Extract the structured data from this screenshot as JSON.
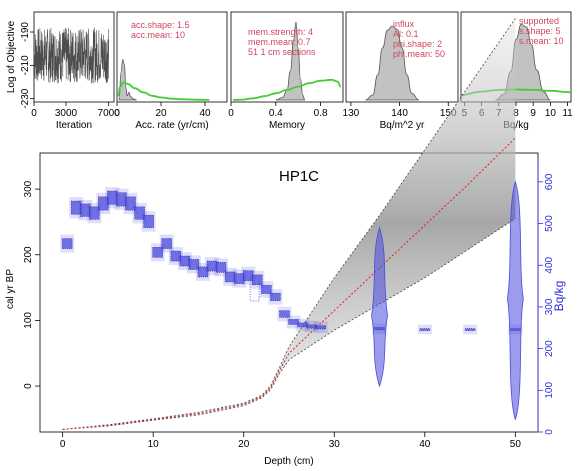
{
  "chart_data": [
    {
      "type": "line",
      "panel": "log-objective",
      "title": "",
      "xlabel": "Iteration",
      "ylabel": "Log of Objective",
      "xlim": [
        0,
        7500
      ],
      "ylim": [
        -232,
        -178
      ],
      "x_ticks": [
        0,
        3000,
        7000
      ],
      "y_ticks": [
        -230,
        -210,
        -190
      ],
      "series": [
        {
          "approx_range": [
            -228,
            -180
          ],
          "iterations": 7000
        }
      ],
      "grid": false
    },
    {
      "type": "area",
      "panel": "accumulation-rate",
      "xlabel": "Acc. rate (yr/cm)",
      "xlim": [
        0,
        50
      ],
      "x_ticks": [
        0,
        20,
        40
      ],
      "annotations": [
        "acc.shape:  1.5",
        "acc.mean:  10"
      ],
      "posterior_x": [
        1,
        1.8,
        2.6,
        3.4,
        4,
        4.6,
        5.4,
        6.2,
        7.6,
        9
      ],
      "posterior_y": [
        0.02,
        0.33,
        0.48,
        0.42,
        0.15,
        0.05,
        0.09,
        0.04,
        0.01,
        0
      ],
      "prior_x": [
        0.5,
        1.5,
        3,
        5,
        8,
        12,
        16,
        20,
        25,
        30,
        36,
        42
      ],
      "prior_y": [
        0.05,
        0.16,
        0.21,
        0.19,
        0.14,
        0.09,
        0.05,
        0.03,
        0.015,
        0.008,
        0.003,
        0.001
      ]
    },
    {
      "type": "area",
      "panel": "memory",
      "xlabel": "Memory",
      "xlim": [
        0,
        1
      ],
      "x_ticks": [
        0.0,
        0.4,
        0.8
      ],
      "annotations": [
        "mem.strength: 4",
        "mem.mean: 0.7",
        "51 1 cm sections"
      ],
      "posterior_x": [
        0.4,
        0.46,
        0.5,
        0.53,
        0.56,
        0.58,
        0.6,
        0.62,
        0.64,
        0.66
      ],
      "posterior_y": [
        0,
        0.03,
        0.12,
        0.35,
        0.72,
        0.93,
        0.62,
        0.25,
        0.06,
        0
      ],
      "prior_x": [
        0.02,
        0.1,
        0.2,
        0.3,
        0.4,
        0.5,
        0.6,
        0.7,
        0.8,
        0.9,
        0.95,
        0.98
      ],
      "prior_y": [
        0,
        0.005,
        0.02,
        0.045,
        0.08,
        0.12,
        0.16,
        0.2,
        0.23,
        0.24,
        0.22,
        0.16
      ]
    },
    {
      "type": "area",
      "panel": "influx",
      "xlabel": "Bq/m^2 yr",
      "xlim": [
        129,
        152
      ],
      "x_ticks": [
        130,
        140,
        150
      ],
      "annotations": [
        "influx",
        "Al:  0.1",
        "phi.shape:  2",
        "phi.mean:  50"
      ],
      "posterior_x": [
        133,
        134.5,
        135.5,
        136.5,
        137.5,
        138.5,
        139.5,
        140.5,
        141.5,
        142.5,
        144
      ],
      "posterior_y": [
        0,
        0.06,
        0.3,
        0.62,
        0.83,
        0.88,
        0.84,
        0.62,
        0.3,
        0.08,
        0
      ]
    },
    {
      "type": "area",
      "panel": "supported",
      "xlabel": "Bq/kg",
      "xlim": [
        4.8,
        11.2
      ],
      "x_ticks": [
        5,
        6,
        7,
        8,
        9,
        10,
        11
      ],
      "annotations": [
        "supported",
        "s.shape: 5",
        "s.mean: 10"
      ],
      "posterior_x": [
        6.8,
        7.3,
        7.7,
        8,
        8.3,
        8.6,
        8.9,
        9.2,
        9.6,
        10
      ],
      "posterior_y": [
        0,
        0.07,
        0.34,
        0.72,
        0.9,
        0.87,
        0.66,
        0.36,
        0.1,
        0
      ],
      "prior_x": [
        4.8,
        6,
        7,
        8,
        9,
        10,
        11,
        11.2
      ],
      "prior_y": [
        0.06,
        0.1,
        0.12,
        0.125,
        0.12,
        0.11,
        0.095,
        0.09
      ]
    },
    {
      "type": "scatter",
      "panel": "main",
      "title": "HP1C",
      "xlabel": "Depth (cm)",
      "ylabel": "cal yr BP",
      "ylabel_right": "Bq/kg",
      "xlim": [
        -2.5,
        52.5
      ],
      "ylim": [
        -70,
        355
      ],
      "x_ticks": [
        0,
        10,
        20,
        30,
        40,
        50
      ],
      "y_ticks": [
        0,
        100,
        200,
        300
      ],
      "ylim_right": [
        0,
        650
      ],
      "y_ticks_right": [
        0,
        100,
        200,
        300,
        400,
        500,
        600
      ],
      "age_model": {
        "depth": [
          0,
          5,
          10,
          15,
          20,
          22,
          23,
          24,
          25,
          30,
          35,
          40,
          45,
          50
        ],
        "mean_age": [
          -66,
          -60,
          -51,
          -42,
          -28,
          -16,
          -2,
          25,
          50,
          115,
          180,
          245,
          310,
          378
        ],
        "lower_age": [
          -66,
          -61,
          -52,
          -44,
          -30,
          -18,
          -5,
          20,
          40,
          85,
          125,
          165,
          210,
          255
        ],
        "upper_age": [
          -66,
          -59,
          -50,
          -40,
          -26,
          -14,
          1,
          30,
          60,
          165,
          260,
          360,
          460,
          560
        ]
      },
      "pb210_measurements": {
        "depth": [
          0.5,
          1.5,
          2.5,
          3.5,
          4.5,
          5.5,
          6.5,
          7.5,
          8.5,
          9.5,
          10.5,
          11.5,
          12.5,
          13.5,
          14.5,
          15.5,
          16.5,
          17.5,
          18.5,
          19.5,
          20.5,
          21.5,
          22.5,
          23.5,
          24.5,
          25.5,
          26.5,
          27.5,
          28.5,
          35,
          40,
          45,
          50
        ],
        "bq_per_kg": [
          452,
          538,
          532,
          525,
          548,
          562,
          558,
          548,
          525,
          505,
          431,
          452,
          422,
          410,
          402,
          384,
          398,
          395,
          372,
          368,
          375,
          365,
          342,
          324,
          283,
          264,
          257,
          253,
          251,
          248,
          246,
          246,
          246
        ],
        "error": [
          12,
          16,
          15,
          15,
          16,
          16,
          16,
          16,
          15,
          15,
          12,
          12,
          12,
          12,
          12,
          12,
          12,
          12,
          12,
          12,
          12,
          12,
          10,
          9,
          8,
          6,
          5,
          4,
          4,
          3,
          2,
          2,
          2
        ]
      },
      "supported_measurements": {
        "depth": [
          35,
          50
        ],
        "bq_per_kg": [
          280,
          320
        ],
        "range": [
          [
            110,
            490
          ],
          [
            30,
            600
          ]
        ]
      }
    }
  ],
  "colors": {
    "trace": "#4d4d4d",
    "prior": "#44cc33",
    "posterior_fill": "#c2c2c2",
    "annotation": "#d2455f",
    "pb210": "#4b4bdd",
    "right_axis": "#2f2fd6",
    "mean_line": "#e02020"
  }
}
